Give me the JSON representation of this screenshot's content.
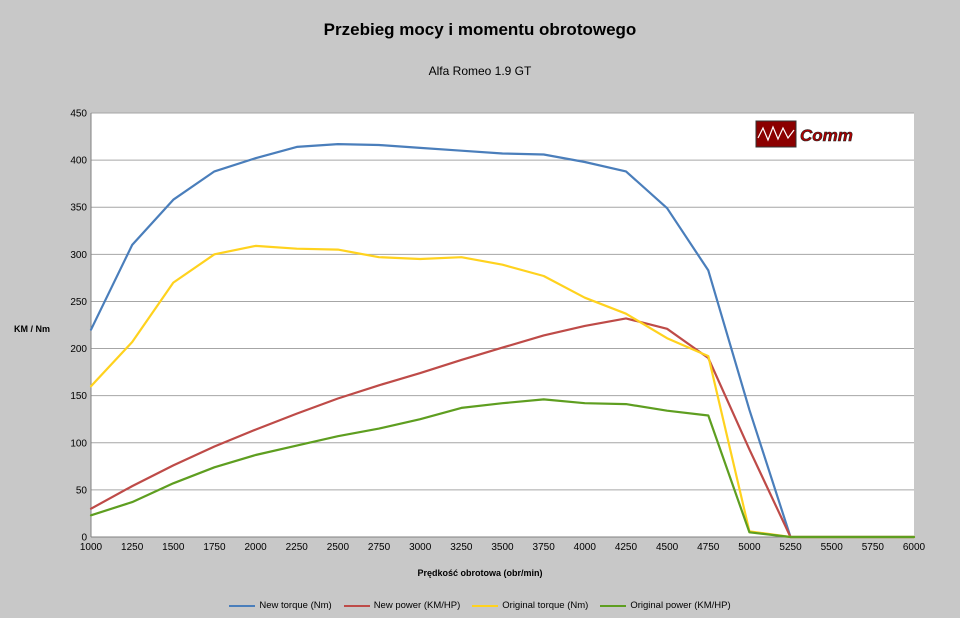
{
  "chart_data": {
    "type": "line",
    "title": "Przebieg mocy i momentu obrotowego",
    "subtitle": "Alfa Romeo 1.9 GT",
    "xlabel": "Prędkość obrotowa (obr/min)",
    "ylabel": "KM / Nm",
    "ylim": [
      0,
      450
    ],
    "yticks": [
      0,
      50,
      100,
      150,
      200,
      250,
      300,
      350,
      400,
      450
    ],
    "x": [
      1000,
      1250,
      1500,
      1750,
      2000,
      2250,
      2500,
      2750,
      3000,
      3250,
      3500,
      3750,
      4000,
      4250,
      4500,
      4750,
      5000,
      5250,
      5500,
      5750,
      6000
    ],
    "grid": true,
    "legend_position": "bottom",
    "series": [
      {
        "name": "New torque (Nm)",
        "color": "#4a7ebb",
        "values": [
          220,
          310,
          358,
          388,
          402,
          414,
          417,
          416,
          413,
          410,
          407,
          406,
          398,
          388,
          349,
          283,
          135,
          0,
          0,
          0,
          0
        ]
      },
      {
        "name": "New power (KM/HP)",
        "color": "#be4b48",
        "values": [
          30,
          54,
          76,
          96,
          114,
          131,
          147,
          161,
          174,
          188,
          201,
          214,
          224,
          232,
          221,
          190,
          93,
          0,
          0,
          0,
          0
        ]
      },
      {
        "name": "Original torque (Nm)",
        "color": "#ffd21e",
        "values": [
          160,
          207,
          270,
          300,
          309,
          306,
          305,
          297,
          295,
          297,
          289,
          277,
          254,
          237,
          211,
          192,
          6,
          0,
          0,
          0,
          0
        ]
      },
      {
        "name": "Original power (KM/HP)",
        "color": "#5e9e20",
        "values": [
          23,
          37,
          57,
          74,
          87,
          97,
          107,
          115,
          125,
          137,
          142,
          146,
          142,
          141,
          134,
          129,
          5,
          0,
          0,
          0,
          0
        ]
      }
    ],
    "logo": {
      "text": "Comm"
    }
  }
}
